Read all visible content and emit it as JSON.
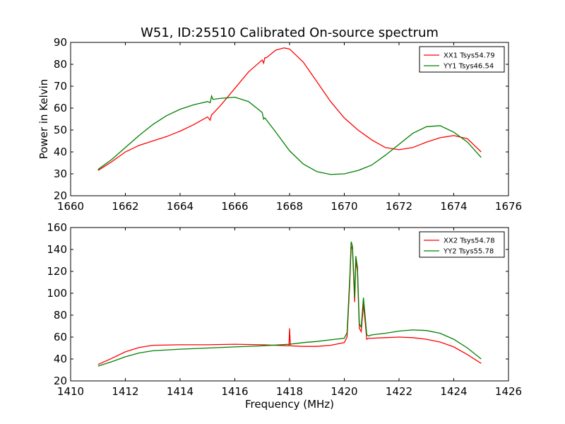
{
  "figure": {
    "title": "W51, ID:25510 Calibrated On-source spectrum"
  },
  "chart_data": [
    {
      "type": "line",
      "title": "W51, ID:25510 Calibrated On-source spectrum",
      "xlabel": "",
      "ylabel": "Power in Kelvin",
      "xlim": [
        1660,
        1676
      ],
      "ylim": [
        20,
        90
      ],
      "xticks": [
        1660,
        1662,
        1664,
        1666,
        1668,
        1670,
        1672,
        1674,
        1676
      ],
      "yticks": [
        20,
        30,
        40,
        50,
        60,
        70,
        80,
        90
      ],
      "legend_position": "top-right",
      "series": [
        {
          "name": "XX1 Tsys54.79",
          "color": "#ff0000",
          "x": [
            1661.0,
            1661.5,
            1662.0,
            1662.5,
            1663.0,
            1663.5,
            1664.0,
            1664.5,
            1665.0,
            1665.1,
            1665.15,
            1665.2,
            1665.5,
            1666.0,
            1666.5,
            1667.0,
            1667.05,
            1667.1,
            1667.15,
            1667.5,
            1667.8,
            1668.0,
            1668.5,
            1669.0,
            1669.5,
            1670.0,
            1670.5,
            1671.0,
            1671.5,
            1672.0,
            1672.5,
            1673.0,
            1673.5,
            1674.0,
            1674.5,
            1675.0
          ],
          "y": [
            31.5,
            35.5,
            40.0,
            43.0,
            45.0,
            47.0,
            49.5,
            52.5,
            56.0,
            54.5,
            57.0,
            57.5,
            61.5,
            69.0,
            76.5,
            82.0,
            80.5,
            83.0,
            83.0,
            86.5,
            87.5,
            87.0,
            81.0,
            72.0,
            63.0,
            55.5,
            50.0,
            45.5,
            42.0,
            41.0,
            42.0,
            44.5,
            46.5,
            47.5,
            46.0,
            40.0
          ]
        },
        {
          "name": "YY1 Tsys46.54",
          "color": "#008000",
          "x": [
            1661.0,
            1661.5,
            1662.0,
            1662.5,
            1663.0,
            1663.5,
            1664.0,
            1664.5,
            1665.0,
            1665.1,
            1665.15,
            1665.2,
            1665.5,
            1666.0,
            1666.5,
            1667.0,
            1667.05,
            1667.1,
            1667.5,
            1668.0,
            1668.5,
            1669.0,
            1669.5,
            1670.0,
            1670.5,
            1671.0,
            1671.5,
            1672.0,
            1672.5,
            1673.0,
            1673.5,
            1674.0,
            1674.5,
            1675.0
          ],
          "y": [
            32.0,
            36.5,
            42.0,
            47.5,
            52.5,
            56.5,
            59.5,
            61.5,
            63.0,
            62.5,
            65.5,
            64.0,
            64.5,
            65.0,
            63.0,
            58.0,
            55.0,
            55.5,
            49.0,
            40.5,
            34.5,
            31.0,
            29.7,
            30.0,
            31.5,
            34.0,
            38.5,
            43.5,
            48.5,
            51.5,
            52.0,
            49.0,
            44.5,
            37.5
          ]
        }
      ]
    },
    {
      "type": "line",
      "title": "",
      "xlabel": "Frequency (MHz)",
      "ylabel": "",
      "xlim": [
        1410,
        1426
      ],
      "ylim": [
        20,
        160
      ],
      "xticks": [
        1410,
        1412,
        1414,
        1416,
        1418,
        1420,
        1422,
        1424,
        1426
      ],
      "yticks": [
        20,
        40,
        60,
        80,
        100,
        120,
        140,
        160
      ],
      "legend_position": "top-right",
      "series": [
        {
          "name": "XX2 Tsys54.78",
          "color": "#ff0000",
          "x": [
            1411.0,
            1411.5,
            1412.0,
            1412.5,
            1413.0,
            1414.0,
            1415.0,
            1416.0,
            1417.0,
            1417.98,
            1418.0,
            1418.03,
            1418.5,
            1419.0,
            1419.5,
            1420.0,
            1420.1,
            1420.2,
            1420.25,
            1420.3,
            1420.38,
            1420.42,
            1420.48,
            1420.55,
            1420.62,
            1420.7,
            1420.76,
            1420.82,
            1420.9,
            1421.0,
            1421.5,
            1422.0,
            1422.5,
            1423.0,
            1423.5,
            1424.0,
            1424.5,
            1425.0
          ],
          "y": [
            35.0,
            40.5,
            46.5,
            50.5,
            52.5,
            53.0,
            53.0,
            53.5,
            53.0,
            52.0,
            68.0,
            52.0,
            51.5,
            51.5,
            52.5,
            55.0,
            60.0,
            110.0,
            143.0,
            140.0,
            92.0,
            130.0,
            120.0,
            68.0,
            65.0,
            90.0,
            75.0,
            58.0,
            59.0,
            59.0,
            59.5,
            60.0,
            59.5,
            58.0,
            55.5,
            51.0,
            44.0,
            36.0
          ]
        },
        {
          "name": "YY2 Tsys55.78",
          "color": "#008000",
          "x": [
            1411.0,
            1411.5,
            1412.0,
            1412.5,
            1413.0,
            1414.0,
            1415.0,
            1416.0,
            1417.0,
            1418.0,
            1418.5,
            1419.0,
            1419.5,
            1420.0,
            1420.1,
            1420.2,
            1420.25,
            1420.3,
            1420.38,
            1420.42,
            1420.48,
            1420.55,
            1420.62,
            1420.7,
            1420.76,
            1420.82,
            1420.9,
            1421.0,
            1421.5,
            1422.0,
            1422.5,
            1423.0,
            1423.5,
            1424.0,
            1424.5,
            1425.0
          ],
          "y": [
            33.5,
            37.5,
            42.0,
            45.5,
            47.5,
            49.0,
            50.0,
            51.0,
            52.0,
            53.5,
            55.0,
            56.0,
            57.5,
            59.0,
            64.0,
            115.0,
            147.0,
            143.0,
            96.0,
            134.0,
            124.0,
            72.0,
            69.0,
            96.0,
            80.0,
            62.0,
            61.0,
            62.0,
            63.5,
            65.5,
            66.5,
            66.0,
            63.5,
            58.0,
            50.0,
            40.0
          ]
        }
      ]
    }
  ]
}
